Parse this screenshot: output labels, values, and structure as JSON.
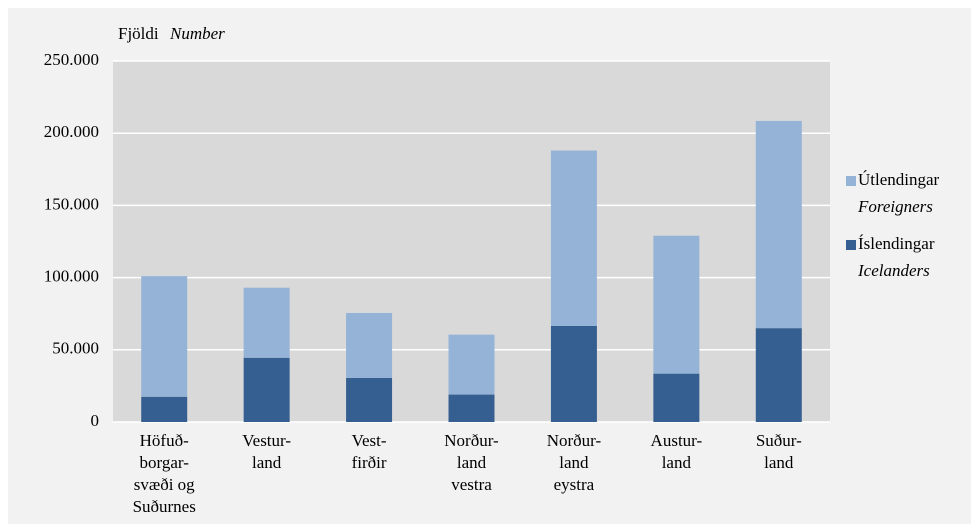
{
  "chart_data": {
    "type": "stacked_bar",
    "y_label": "Fjöldi",
    "y_label_en": "Number",
    "categories": [
      "Höfuð-\nborgar-\nsvæði og\nSuðurnes",
      "Vestur-\nland",
      "Vest-\nfirðir",
      "Norður-\nland\nvestra",
      "Norður-\nland\neystra",
      "Austur-\nland",
      "Suður-\nland"
    ],
    "series": [
      {
        "name": "Íslendingar",
        "name_en": "Icelanders",
        "color": "#365f91",
        "values": [
          17500,
          44500,
          30500,
          19000,
          66500,
          33500,
          65000
        ]
      },
      {
        "name": "Útlendingar",
        "name_en": "Foreigners",
        "color": "#95b3d7",
        "values": [
          83500,
          48500,
          45000,
          41500,
          121500,
          95500,
          143500
        ]
      }
    ],
    "ylim": [
      0,
      250000
    ],
    "yticks": [
      0,
      {
        "value": 50000,
        "label": "50.000"
      },
      {
        "value": 100000,
        "label": "100.000"
      },
      {
        "value": 150000,
        "label": "150.000"
      },
      {
        "value": 200000,
        "label": "200.000"
      },
      {
        "value": 250000,
        "label": "250.000"
      }
    ],
    "grid": true,
    "legend": "right"
  }
}
